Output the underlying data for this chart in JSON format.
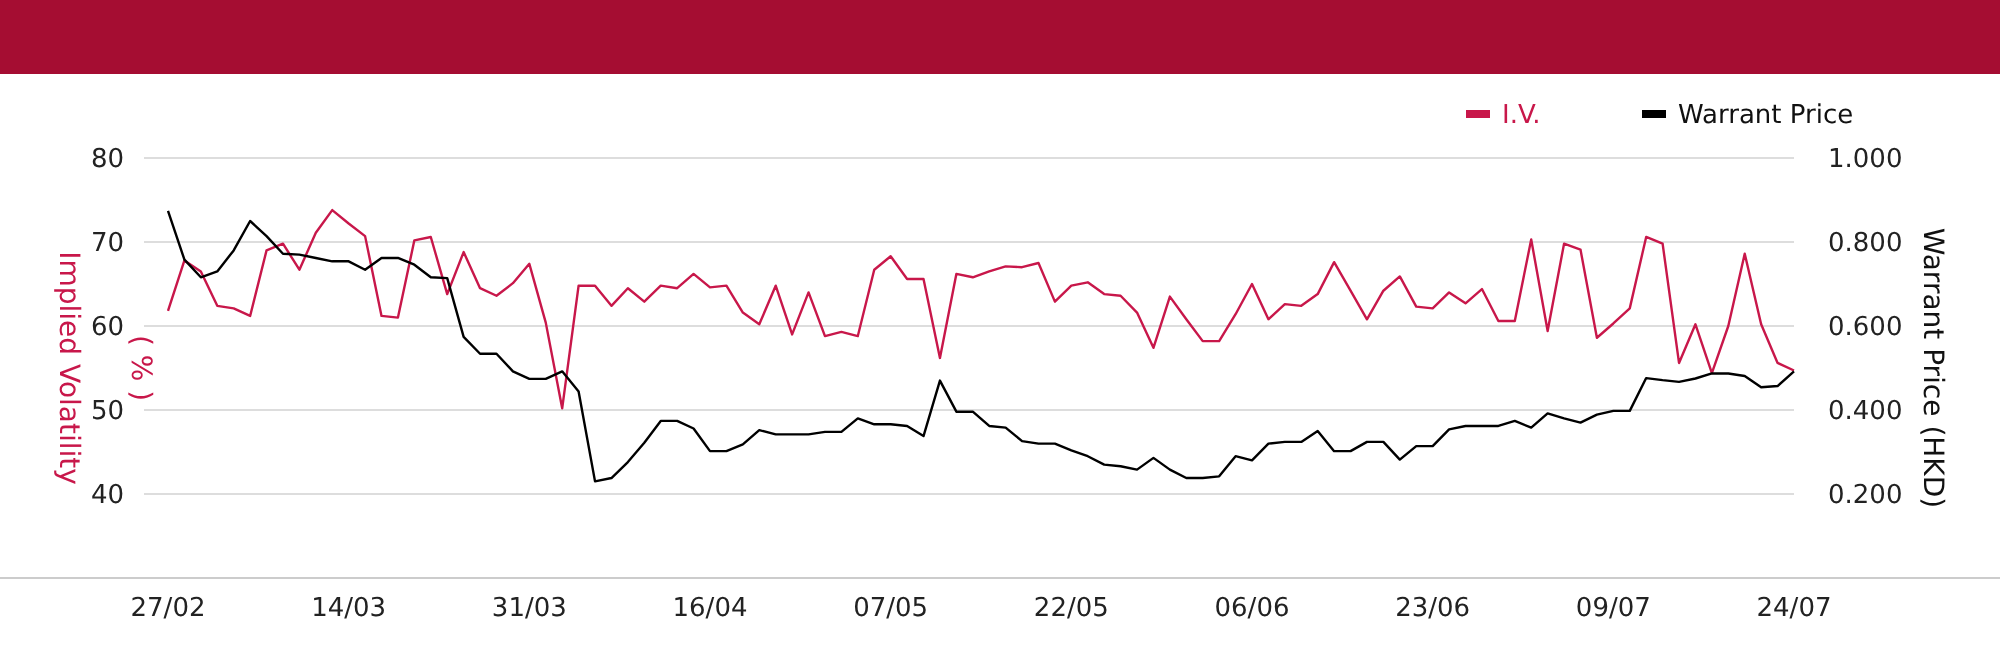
{
  "chart_data": {
    "type": "line",
    "ylabel": "Implied Volatility\n( % )",
    "y2label": "Warrant Price (HKD)",
    "categories": [
      "27/02",
      null,
      null,
      null,
      null,
      null,
      null,
      null,
      null,
      null,
      null,
      "14/03",
      null,
      null,
      null,
      null,
      null,
      null,
      null,
      null,
      null,
      null,
      "31/03",
      null,
      null,
      null,
      null,
      null,
      null,
      null,
      null,
      null,
      null,
      "16/04",
      null,
      null,
      null,
      null,
      null,
      null,
      null,
      null,
      null,
      null,
      "07/05",
      null,
      null,
      null,
      null,
      null,
      null,
      null,
      null,
      null,
      null,
      "22/05",
      null,
      null,
      null,
      null,
      null,
      null,
      null,
      null,
      null,
      null,
      "06/06",
      null,
      null,
      null,
      null,
      null,
      null,
      null,
      null,
      null,
      null,
      "23/06",
      null,
      null,
      null,
      null,
      null,
      null,
      null,
      null,
      null,
      null,
      "09/07",
      null,
      null,
      null,
      null,
      null,
      null,
      null,
      null,
      null,
      null,
      "24/07"
    ],
    "series": [
      {
        "name": "I.V.",
        "color": "#c8174a",
        "values": [
          61.8,
          67.8,
          66.5,
          62.4,
          62.1,
          61.2,
          69.0,
          69.8,
          66.7,
          71.1,
          73.8,
          72.2,
          70.7,
          61.2,
          61.0,
          70.2,
          70.6,
          63.8,
          68.8,
          64.5,
          63.6,
          65.1,
          67.4,
          60.4,
          50.2,
          64.8,
          64.8,
          62.4,
          64.5,
          62.9,
          64.8,
          64.5,
          66.2,
          64.6,
          64.8,
          61.6,
          60.2,
          64.8,
          59.0,
          64.0,
          58.8,
          59.3,
          58.8,
          66.7,
          68.3,
          65.6,
          65.6,
          56.2,
          66.2,
          65.8,
          66.5,
          67.1,
          67.0,
          67.5,
          62.9,
          64.8,
          65.2,
          63.8,
          63.6,
          61.6,
          57.4,
          63.5,
          60.8,
          58.2,
          58.2,
          61.4,
          65.0,
          60.8,
          62.6,
          62.4,
          63.8,
          67.6,
          64.2,
          60.8,
          64.2,
          65.9,
          62.3,
          62.1,
          64.0,
          62.7,
          64.4,
          60.6,
          60.6,
          70.3,
          59.4,
          69.8,
          69.1,
          58.6,
          60.3,
          62.1,
          70.6,
          69.8,
          55.6,
          60.2,
          54.4,
          60.0,
          68.6,
          60.2,
          55.6,
          54.7
        ]
      },
      {
        "name": "Warrant Price",
        "color": "#000000",
        "axis": "y2",
        "values": [
          0.874,
          0.758,
          0.716,
          0.73,
          0.78,
          0.85,
          0.814,
          0.772,
          0.77,
          0.762,
          0.754,
          0.754,
          0.734,
          0.762,
          0.762,
          0.746,
          0.716,
          0.714,
          0.574,
          0.534,
          0.534,
          0.492,
          0.474,
          0.474,
          0.492,
          0.444,
          0.23,
          0.238,
          0.276,
          0.322,
          0.374,
          0.374,
          0.356,
          0.302,
          0.302,
          0.318,
          0.352,
          0.342,
          0.342,
          0.342,
          0.348,
          0.348,
          0.38,
          0.366,
          0.366,
          0.362,
          0.338,
          0.47,
          0.396,
          0.396,
          0.362,
          0.358,
          0.326,
          0.32,
          0.32,
          0.304,
          0.29,
          0.27,
          0.266,
          0.258,
          0.286,
          0.258,
          0.238,
          0.238,
          0.242,
          0.29,
          0.28,
          0.32,
          0.324,
          0.324,
          0.35,
          0.302,
          0.302,
          0.324,
          0.324,
          0.282,
          0.314,
          0.314,
          0.354,
          0.362,
          0.362,
          0.362,
          0.374,
          0.358,
          0.392,
          0.38,
          0.37,
          0.389,
          0.398,
          0.398,
          0.476,
          0.471,
          0.467,
          0.475,
          0.487,
          0.487,
          0.481,
          0.454,
          0.457,
          0.492
        ]
      }
    ],
    "ylim": [
      30,
      80
    ],
    "yticks": [
      40,
      50,
      60,
      70,
      80
    ],
    "y2lim": [
      0,
      1
    ],
    "y2ticks": [
      {
        "value": 0.2,
        "label": "0.200"
      },
      {
        "value": 0.4,
        "label": "0.400"
      },
      {
        "value": 0.6,
        "label": "0.600"
      },
      {
        "value": 0.8,
        "label": "0.800"
      },
      {
        "value": 1,
        "label": "1.000"
      }
    ],
    "grid": "y",
    "legend": "top right",
    "marker": "none",
    "line_style": "solid"
  }
}
